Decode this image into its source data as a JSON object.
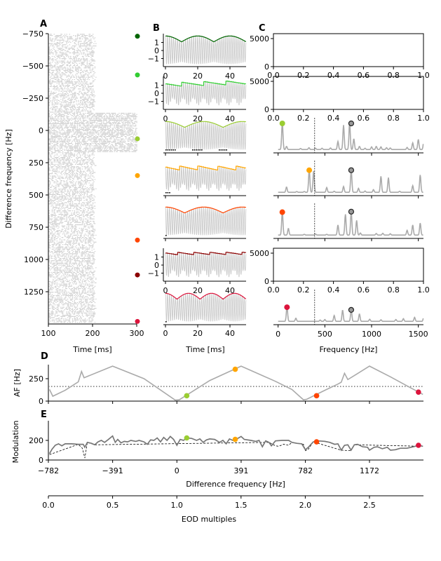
{
  "panel_labels": {
    "A": "A",
    "B": "B",
    "C": "C",
    "D": "D",
    "E": "E"
  },
  "colors": {
    "rows": [
      "#006400",
      "#32cd32",
      "#9acd32",
      "#ffa500",
      "#ff4500",
      "#8b0000",
      "#dc143c"
    ],
    "gray": "#aaaaaa",
    "trace_gray": "#c8c8c8",
    "raster": "#cccccc"
  },
  "chart_data": [
    {
      "panel": "A",
      "type": "scatter",
      "xlabel": "Time [ms]",
      "ylabel": "Difference frequency [Hz]",
      "xlim": [
        100,
        300
      ],
      "ylim": [
        -750,
        1500
      ],
      "y_inverted": true,
      "xticks": [
        "100",
        "200",
        "300"
      ],
      "yticks": [
        "−750",
        "−500",
        "−250",
        "0",
        "250",
        "500",
        "750",
        "1000",
        "1250"
      ],
      "ytick_values": [
        -750,
        -500,
        -250,
        0,
        250,
        500,
        750,
        1000,
        1250
      ],
      "xtick_values": [
        100,
        200,
        300
      ],
      "wide_band_hz": [
        -140,
        170
      ],
      "row_markers_hz": [
        -730,
        -430,
        65,
        350,
        850,
        1120,
        1480
      ]
    },
    {
      "panel": "B",
      "type": "line",
      "xlabel": "Time [ms]",
      "xlim": [
        0,
        50
      ],
      "xticks": [
        "0",
        "20",
        "40"
      ],
      "xtick_values": [
        0,
        20,
        40
      ],
      "yticks": [
        "1",
        "0",
        "−1"
      ],
      "ytick_values": [
        1,
        0,
        -1
      ],
      "rows_with_yticks": [
        0,
        1,
        5
      ]
    },
    {
      "panel": "C",
      "type": "line",
      "xlabel": "Frequency [Hz]",
      "xlim": [
        -50,
        1555
      ],
      "xticks": [
        "0",
        "500",
        "1000",
        "1500"
      ],
      "xtick_values": [
        0,
        500,
        1000,
        1500
      ],
      "empty_axes": {
        "rows": [
          0,
          1,
          5
        ],
        "yticks": [
          "0",
          "5000"
        ],
        "xticks": [
          "0.0",
          "0.2",
          "0.4",
          "0.6",
          "0.8",
          "1.0"
        ]
      },
      "dashed_line_hz": 391,
      "eod_marker_hz": 782,
      "spectra": [
        {
          "row": 2,
          "marker_hz": 45,
          "peaks": [
            [
              45,
              1.0
            ],
            [
              90,
              0.12
            ],
            [
              240,
              0.04
            ],
            [
              330,
              0.07
            ],
            [
              400,
              0.05
            ],
            [
              470,
              0.05
            ],
            [
              560,
              0.06
            ],
            [
              640,
              0.3
            ],
            [
              700,
              0.92
            ],
            [
              765,
              1.0
            ],
            [
              810,
              0.4
            ],
            [
              870,
              0.12
            ],
            [
              930,
              0.05
            ],
            [
              1000,
              0.1
            ],
            [
              1050,
              0.12
            ],
            [
              1100,
              0.1
            ],
            [
              1160,
              0.07
            ],
            [
              1200,
              0.06
            ],
            [
              1380,
              0.08
            ],
            [
              1440,
              0.25
            ],
            [
              1500,
              0.38
            ],
            [
              1560,
              0.4
            ]
          ]
        },
        {
          "row": 3,
          "marker_hz": 333,
          "peaks": [
            [
              90,
              0.2
            ],
            [
              200,
              0.03
            ],
            [
              280,
              0.03
            ],
            [
              333,
              0.85
            ],
            [
              380,
              0.8
            ],
            [
              520,
              0.18
            ],
            [
              600,
              0.04
            ],
            [
              700,
              0.22
            ],
            [
              782,
              0.85
            ],
            [
              860,
              0.15
            ],
            [
              930,
              0.05
            ],
            [
              1020,
              0.1
            ],
            [
              1100,
              0.6
            ],
            [
              1180,
              0.55
            ],
            [
              1300,
              0.04
            ],
            [
              1440,
              0.25
            ],
            [
              1520,
              0.65
            ]
          ]
        },
        {
          "row": 4,
          "marker_hz": 45,
          "peaks": [
            [
              45,
              0.88
            ],
            [
              110,
              0.25
            ],
            [
              280,
              0.03
            ],
            [
              400,
              0.04
            ],
            [
              520,
              0.03
            ],
            [
              640,
              0.38
            ],
            [
              720,
              0.78
            ],
            [
              782,
              0.9
            ],
            [
              840,
              0.55
            ],
            [
              880,
              0.08
            ],
            [
              1050,
              0.06
            ],
            [
              1120,
              0.07
            ],
            [
              1200,
              0.05
            ],
            [
              1380,
              0.18
            ],
            [
              1440,
              0.38
            ],
            [
              1520,
              0.45
            ]
          ]
        },
        {
          "row": 6,
          "marker_hz": 95,
          "peaks": [
            [
              95,
              0.55
            ],
            [
              190,
              0.12
            ],
            [
              450,
              0.05
            ],
            [
              500,
              0.07
            ],
            [
              600,
              0.22
            ],
            [
              690,
              0.42
            ],
            [
              782,
              0.45
            ],
            [
              870,
              0.28
            ],
            [
              980,
              0.08
            ],
            [
              1100,
              0.06
            ],
            [
              1260,
              0.07
            ],
            [
              1340,
              0.1
            ],
            [
              1460,
              0.15
            ],
            [
              1560,
              0.22
            ]
          ]
        }
      ]
    },
    {
      "panel": "D",
      "type": "line",
      "ylabel": "AF [Hz]",
      "ylim": [
        0,
        420
      ],
      "yticks": [
        "0",
        "250"
      ],
      "ytick_values": [
        0,
        250
      ],
      "xlim": [
        -782,
        1500
      ],
      "threshold_hz": 163,
      "x": [
        -775,
        -755,
        -680,
        -600,
        -580,
        -565,
        -391,
        -200,
        -10,
        15,
        200,
        391,
        600,
        700,
        770,
        790,
        900,
        980,
        1000,
        1020,
        1040,
        1172,
        1300,
        1400,
        1497
      ],
      "y": [
        130,
        55,
        120,
        215,
        330,
        260,
        390,
        250,
        12,
        15,
        230,
        390,
        220,
        130,
        15,
        20,
        120,
        190,
        210,
        310,
        240,
        390,
        270,
        170,
        75
      ],
      "markers": [
        [
          60,
          60
        ],
        [
          355,
          355
        ],
        [
          850,
          60
        ],
        [
          1470,
          100
        ]
      ]
    },
    {
      "panel": "E",
      "type": "line",
      "ylabel": "Modulation",
      "ylim": [
        0,
        400
      ],
      "yticks": [
        "0",
        "200"
      ],
      "ytick_values": [
        0,
        200
      ],
      "xlabel": "Difference frequency [Hz]",
      "xlim": [
        -782,
        1500
      ],
      "xticks": [
        "−782",
        "−391",
        "0",
        "391",
        "782",
        "1172"
      ],
      "xtick_values": [
        -782,
        -391,
        0,
        391,
        782,
        1172
      ],
      "x": [
        -775,
        -760,
        -740,
        -720,
        -700,
        -680,
        -640,
        -600,
        -570,
        -560,
        -545,
        -520,
        -500,
        -480,
        -460,
        -440,
        -420,
        -391,
        -375,
        -360,
        -340,
        -320,
        -300,
        -280,
        -250,
        -230,
        -200,
        -180,
        -160,
        -140,
        -120,
        -100,
        -80,
        -60,
        -40,
        -20,
        0,
        20,
        40,
        60,
        90,
        120,
        140,
        160,
        180,
        200,
        230,
        260,
        280,
        300,
        320,
        340,
        360,
        391,
        410,
        450,
        480,
        500,
        520,
        540,
        560,
        575,
        600,
        640,
        680,
        700,
        730,
        760,
        782,
        800,
        830,
        860,
        900,
        930,
        960,
        980,
        1000,
        1020,
        1040,
        1060,
        1080,
        1100,
        1130,
        1160,
        1172,
        1200,
        1220,
        1250,
        1280,
        1300,
        1330,
        1360,
        1400,
        1440,
        1470,
        1497
      ],
      "y": [
        65,
        110,
        150,
        165,
        145,
        165,
        165,
        160,
        160,
        130,
        180,
        170,
        155,
        185,
        200,
        180,
        205,
        245,
        180,
        210,
        175,
        190,
        185,
        200,
        190,
        200,
        185,
        160,
        205,
        200,
        225,
        185,
        230,
        200,
        240,
        210,
        150,
        210,
        200,
        225,
        220,
        200,
        215,
        180,
        205,
        215,
        210,
        180,
        200,
        165,
        215,
        200,
        210,
        240,
        210,
        200,
        190,
        200,
        135,
        195,
        180,
        145,
        195,
        200,
        200,
        180,
        170,
        165,
        105,
        130,
        185,
        195,
        190,
        180,
        160,
        165,
        100,
        150,
        155,
        100,
        155,
        160,
        135,
        130,
        100,
        130,
        135,
        115,
        130,
        100,
        105,
        120,
        120,
        135,
        150,
        140
      ],
      "dashed_x": [
        -775,
        -600,
        -575,
        -560,
        -545,
        -500,
        560,
        600,
        620,
        650,
        680,
        700,
        770,
        782,
        800,
        830,
        1000,
        1060,
        1080,
        1497
      ],
      "dashed_y": [
        55,
        160,
        120,
        20,
        180,
        155,
        180,
        145,
        140,
        160,
        150,
        180,
        160,
        95,
        110,
        185,
        100,
        95,
        155,
        140
      ],
      "markers": [
        [
          60,
          225
        ],
        [
          355,
          210
        ],
        [
          850,
          185
        ],
        [
          1470,
          150
        ]
      ]
    },
    {
      "panel": "EOD",
      "type": "axis",
      "xlabel": "EOD multiples",
      "xlim": [
        0,
        2.918
      ],
      "xticks": [
        "0.0",
        "0.5",
        "1.0",
        "1.5",
        "2.0",
        "2.5"
      ],
      "xtick_values": [
        0,
        0.5,
        1.0,
        1.5,
        2.0,
        2.5
      ]
    }
  ]
}
